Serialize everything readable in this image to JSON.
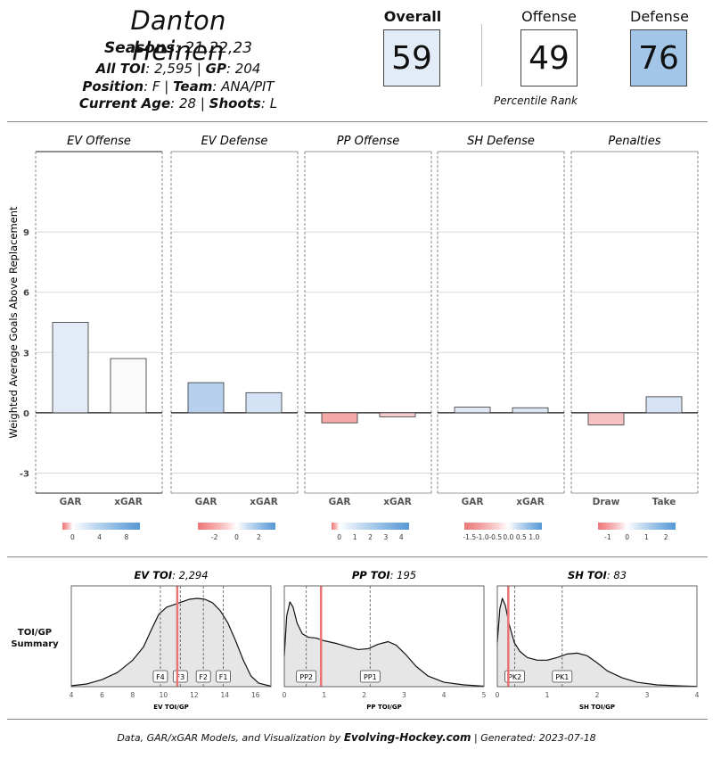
{
  "player": {
    "name": "Danton Heinen",
    "seasons_label": "Seasons",
    "seasons": ": 21,22,23",
    "all_toi_label": "All TOI",
    "all_toi": ": 2,595 | ",
    "gp_label": "GP",
    "gp": ": 204",
    "position_label": "Position",
    "position": ": F | ",
    "team_label": "Team",
    "team": ": ANA/PIT",
    "age_label": "Current Age",
    "age": ": 28 | ",
    "shoots_label": "Shoots",
    "shoots": ": L"
  },
  "scores": {
    "overall_label": "Overall",
    "overall": "59",
    "offense_label": "Offense",
    "offense": "49",
    "defense_label": "Defense",
    "defense": "76",
    "percentile_label": "Percentile Rank",
    "colors": {
      "overall": "#e1ecf6",
      "offense": "#ffffff",
      "defense": "#a3c6e8"
    }
  },
  "chart_data": [
    {
      "type": "bar",
      "ylabel": "Weighted Average Goals Above Replacement",
      "ylim": [
        -4,
        13
      ],
      "yticks": [
        -3,
        0,
        3,
        6,
        9
      ],
      "panels": [
        {
          "title": "EV Offense",
          "categories": [
            "GAR",
            "xGAR"
          ],
          "values": [
            4.5,
            2.7
          ],
          "colors": [
            "#e2ebf6",
            "#fafafb"
          ],
          "legend_ticks": [
            "0",
            "4",
            "8"
          ],
          "legend_tick_vals": [
            0,
            4,
            8
          ],
          "legend_range": [
            -1.5,
            10
          ]
        },
        {
          "title": "EV Defense",
          "categories": [
            "GAR",
            "xGAR"
          ],
          "values": [
            1.5,
            1.0
          ],
          "colors": [
            "#b7d0ee",
            "#d3e2f4"
          ],
          "legend_ticks": [
            "-2",
            "0",
            "2"
          ],
          "legend_tick_vals": [
            -2,
            0,
            2
          ],
          "legend_range": [
            -3.5,
            3.5
          ]
        },
        {
          "title": "PP Offense",
          "categories": [
            "GAR",
            "xGAR"
          ],
          "values": [
            -0.5,
            -0.2
          ],
          "colors": [
            "#f4a9a9",
            "#f7cccc"
          ],
          "legend_ticks": [
            "0",
            "1",
            "2",
            "3",
            "4"
          ],
          "legend_tick_vals": [
            0,
            1,
            2,
            3,
            4
          ],
          "legend_range": [
            -0.5,
            4.5
          ]
        },
        {
          "title": "SH Defense",
          "categories": [
            "GAR",
            "xGAR"
          ],
          "values": [
            0.28,
            0.25
          ],
          "colors": [
            "#dfe8f4",
            "#dde7f4"
          ],
          "legend_ticks": [
            "-1.5",
            "-1.0",
            "-0.5",
            "0.0",
            "0.5",
            "1.0"
          ],
          "legend_tick_vals": [
            -1.5,
            -1.0,
            -0.5,
            0.0,
            0.5,
            1.0
          ],
          "legend_range": [
            -1.7,
            1.3
          ]
        },
        {
          "title": "Penalties",
          "categories": [
            "Draw",
            "Take"
          ],
          "values": [
            -0.6,
            0.8
          ],
          "colors": [
            "#f8c1c1",
            "#d6e3f4"
          ],
          "legend_ticks": [
            "-1",
            "0",
            "1",
            "2"
          ],
          "legend_tick_vals": [
            -1,
            0,
            1,
            2
          ],
          "legend_range": [
            -1.5,
            2.5
          ]
        }
      ]
    },
    {
      "type": "area",
      "side_label_1": "TOI/GP",
      "side_label_2": "Summary",
      "panels": [
        {
          "title_bold": "EV TOI",
          "title_rest": ": 2,294",
          "xlabel": "EV TOI/GP",
          "xlim": [
            4,
            17
          ],
          "xticks": [
            4,
            6,
            8,
            10,
            12,
            14,
            16
          ],
          "player_value": 10.9,
          "markers": [
            {
              "label": "F4",
              "x": 9.8
            },
            {
              "label": "F3",
              "x": 11.1
            },
            {
              "label": "F2",
              "x": 12.6
            },
            {
              "label": "F1",
              "x": 13.9
            }
          ],
          "density_x": [
            4.0,
            5.0,
            6.0,
            7.0,
            8.0,
            8.7,
            9.2,
            9.7,
            10.2,
            10.7,
            11.2,
            11.7,
            12.2,
            12.7,
            13.2,
            13.7,
            14.2,
            14.7,
            15.2,
            15.7,
            16.2,
            17.0
          ],
          "density_y": [
            0.01,
            0.03,
            0.08,
            0.16,
            0.3,
            0.45,
            0.64,
            0.82,
            0.9,
            0.93,
            0.96,
            0.99,
            1.0,
            0.99,
            0.95,
            0.86,
            0.72,
            0.52,
            0.3,
            0.12,
            0.04,
            0.005
          ]
        },
        {
          "title_bold": "PP TOI",
          "title_rest": ": 195",
          "xlabel": "PP TOI/GP",
          "xlim": [
            0,
            5
          ],
          "xticks": [
            0,
            1,
            2,
            3,
            4,
            5
          ],
          "player_value": 0.92,
          "markers": [
            {
              "label": "PP2",
              "x": 0.55
            },
            {
              "label": "PP1",
              "x": 2.15
            }
          ],
          "density_x": [
            0.0,
            0.06,
            0.14,
            0.22,
            0.32,
            0.45,
            0.6,
            0.8,
            1.0,
            1.3,
            1.6,
            1.85,
            2.1,
            2.35,
            2.6,
            2.8,
            3.05,
            3.3,
            3.6,
            4.0,
            4.5,
            5.0
          ],
          "density_y": [
            0.35,
            0.8,
            0.96,
            0.9,
            0.72,
            0.6,
            0.56,
            0.55,
            0.52,
            0.49,
            0.45,
            0.42,
            0.43,
            0.48,
            0.51,
            0.47,
            0.36,
            0.23,
            0.12,
            0.05,
            0.02,
            0.005
          ]
        },
        {
          "title_bold": "SH TOI",
          "title_rest": ": 83",
          "xlabel": "SH TOI/GP",
          "xlim": [
            0,
            4
          ],
          "xticks": [
            0,
            1,
            2,
            3,
            4
          ],
          "player_value": 0.22,
          "markers": [
            {
              "label": "PK2",
              "x": 0.35
            },
            {
              "label": "PK1",
              "x": 1.3
            }
          ],
          "density_x": [
            0.0,
            0.05,
            0.1,
            0.16,
            0.24,
            0.34,
            0.45,
            0.6,
            0.8,
            1.0,
            1.2,
            1.4,
            1.6,
            1.8,
            2.0,
            2.2,
            2.5,
            2.8,
            3.2,
            3.6,
            4.0
          ],
          "density_y": [
            0.5,
            0.88,
            1.0,
            0.92,
            0.7,
            0.5,
            0.4,
            0.33,
            0.3,
            0.3,
            0.33,
            0.37,
            0.38,
            0.35,
            0.27,
            0.18,
            0.1,
            0.05,
            0.02,
            0.01,
            0.003
          ]
        }
      ]
    }
  ],
  "footer": {
    "prefix": "Data, GAR/xGAR Models, and Visualization by ",
    "brand": "Evolving-Hockey.com",
    "suffix": " | Generated: 2023-07-18"
  },
  "colors": {
    "bar_outline": "#333333",
    "grid": "#d9d9d9",
    "player_line": "#e87474",
    "density_fill": "#e6e6e6",
    "neg": "#e84b4b",
    "pos": "#3a86cf"
  }
}
